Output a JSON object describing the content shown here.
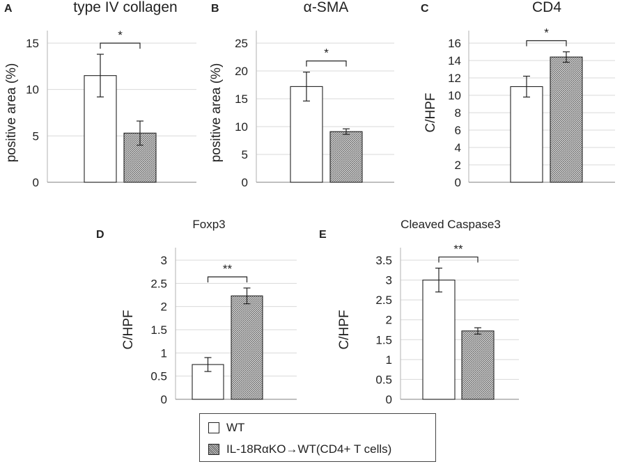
{
  "colors": {
    "wt_fill": "#ffffff",
    "ko_fill": "#bdbdbd",
    "axis": "#bfbfbf",
    "grid": "#d9d9d9",
    "text": "#222222",
    "bar_stroke": "#222222"
  },
  "legend": {
    "items": [
      {
        "label": "WT",
        "style": "open"
      },
      {
        "label": "IL-18RαKO→WT(CD4+ T cells)",
        "style": "hatched"
      }
    ]
  },
  "chart_data": [
    {
      "panel": "A",
      "type": "bar",
      "title": "type IV collagen",
      "ylabel": "positive area (%)",
      "ylim": [
        0,
        15
      ],
      "yticks": [
        "0",
        "5",
        "10",
        "15"
      ],
      "ytick_values": [
        0,
        5,
        10,
        15
      ],
      "series": [
        {
          "name": "WT",
          "value": 11.5,
          "error": 2.3
        },
        {
          "name": "IL-18RαKO→WT(CD4+ T cells)",
          "value": 5.3,
          "error": 1.3
        }
      ],
      "significance": "*"
    },
    {
      "panel": "B",
      "type": "bar",
      "title": "α-SMA",
      "ylabel": "positive area (%)",
      "ylim": [
        0,
        25
      ],
      "yticks": [
        "0",
        "5",
        "10",
        "15",
        "20",
        "25"
      ],
      "ytick_values": [
        0,
        5,
        10,
        15,
        20,
        25
      ],
      "series": [
        {
          "name": "WT",
          "value": 17.2,
          "error": 2.6
        },
        {
          "name": "IL-18RαKO→WT(CD4+ T cells)",
          "value": 9.1,
          "error": 0.5
        }
      ],
      "significance": "*"
    },
    {
      "panel": "C",
      "type": "bar",
      "title": "CD4",
      "ylabel": "C/HPF",
      "ylim": [
        0,
        16
      ],
      "yticks": [
        "0",
        "2",
        "4",
        "6",
        "8",
        "10",
        "12",
        "14",
        "16"
      ],
      "ytick_values": [
        0,
        2,
        4,
        6,
        8,
        10,
        12,
        14,
        16
      ],
      "series": [
        {
          "name": "WT",
          "value": 11.0,
          "error": 1.2
        },
        {
          "name": "IL-18RαKO→WT(CD4+ T cells)",
          "value": 14.4,
          "error": 0.6
        }
      ],
      "significance": "*"
    },
    {
      "panel": "D",
      "type": "bar",
      "title": "Foxp3",
      "ylabel": "C/HPF",
      "ylim": [
        0,
        3
      ],
      "yticks": [
        "0",
        "0.5",
        "1",
        "1.5",
        "2",
        "2.5",
        "3"
      ],
      "ytick_values": [
        0,
        0.5,
        1,
        1.5,
        2,
        2.5,
        3
      ],
      "series": [
        {
          "name": "WT",
          "value": 0.75,
          "error": 0.15
        },
        {
          "name": "IL-18RαKO→WT(CD4+ T cells)",
          "value": 2.23,
          "error": 0.17
        }
      ],
      "significance": "**"
    },
    {
      "panel": "E",
      "type": "bar",
      "title": "Cleaved Caspase3",
      "ylabel": "C/HPF",
      "ylim": [
        0,
        3.5
      ],
      "yticks": [
        "0",
        "0.5",
        "1",
        "1.5",
        "2",
        "2.5",
        "3",
        "3.5"
      ],
      "ytick_values": [
        0,
        0.5,
        1,
        1.5,
        2,
        2.5,
        3,
        3.5
      ],
      "series": [
        {
          "name": "WT",
          "value": 3.0,
          "error": 0.3
        },
        {
          "name": "IL-18RαKO→WT(CD4+ T cells)",
          "value": 1.72,
          "error": 0.08
        }
      ],
      "significance": "**"
    }
  ]
}
